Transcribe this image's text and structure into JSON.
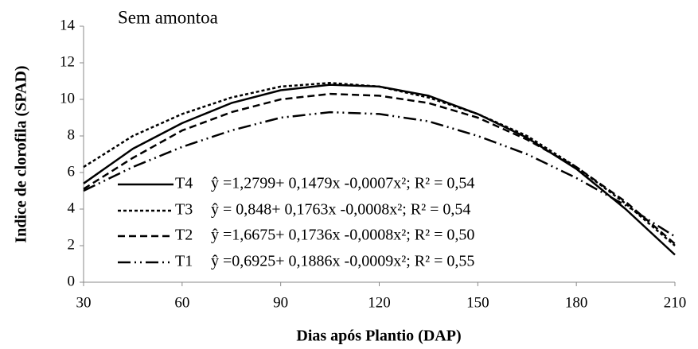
{
  "chart_data": {
    "type": "line",
    "title": "Sem amontoa",
    "x_label": "Dias após Plantio (DAP)",
    "y_label": "Indice de clorofila (SPAD)",
    "x": [
      30,
      45,
      60,
      75,
      90,
      105,
      120,
      135,
      150,
      165,
      180,
      195,
      210
    ],
    "series": [
      {
        "name": "T4",
        "equation": "ŷ =1,2799+ 0,1479x -0,0007x²; R² = 0,54",
        "color": "#000000",
        "dash": "none",
        "values": [
          5.4,
          7.3,
          8.7,
          9.8,
          10.5,
          10.8,
          10.7,
          10.2,
          9.2,
          7.9,
          6.2,
          4.0,
          1.5
        ]
      },
      {
        "name": "T3",
        "equation": "ŷ = 0,848+ 0,1763x -0,0008x²; R² = 0,54",
        "color": "#000000",
        "dash": "4 3",
        "values": [
          6.3,
          8.0,
          9.2,
          10.1,
          10.7,
          10.9,
          10.7,
          10.1,
          9.2,
          8.0,
          6.3,
          4.3,
          2.0
        ]
      },
      {
        "name": "T2",
        "equation": "ŷ =1,6675+ 0,1736x -0,0008x²; R² = 0,50",
        "color": "#000000",
        "dash": "9 5",
        "values": [
          5.1,
          6.8,
          8.3,
          9.3,
          10.0,
          10.3,
          10.2,
          9.8,
          9.0,
          7.8,
          6.3,
          4.4,
          2.1
        ]
      },
      {
        "name": "T1",
        "equation": "ŷ =0,6925+ 0,1886x -0,0009x²; R² = 0,55",
        "color": "#000000",
        "dash": "16 5 2 5 2 5",
        "values": [
          5.0,
          6.3,
          7.4,
          8.3,
          9.0,
          9.3,
          9.2,
          8.8,
          8.0,
          7.0,
          5.7,
          4.2,
          2.5
        ]
      }
    ],
    "xlim": [
      30,
      210
    ],
    "xticks": [
      30,
      60,
      90,
      120,
      150,
      180,
      210
    ],
    "ylim": [
      0,
      14
    ],
    "yticks": [
      0,
      2,
      4,
      6,
      8,
      10,
      12,
      14
    ],
    "grid": false
  }
}
